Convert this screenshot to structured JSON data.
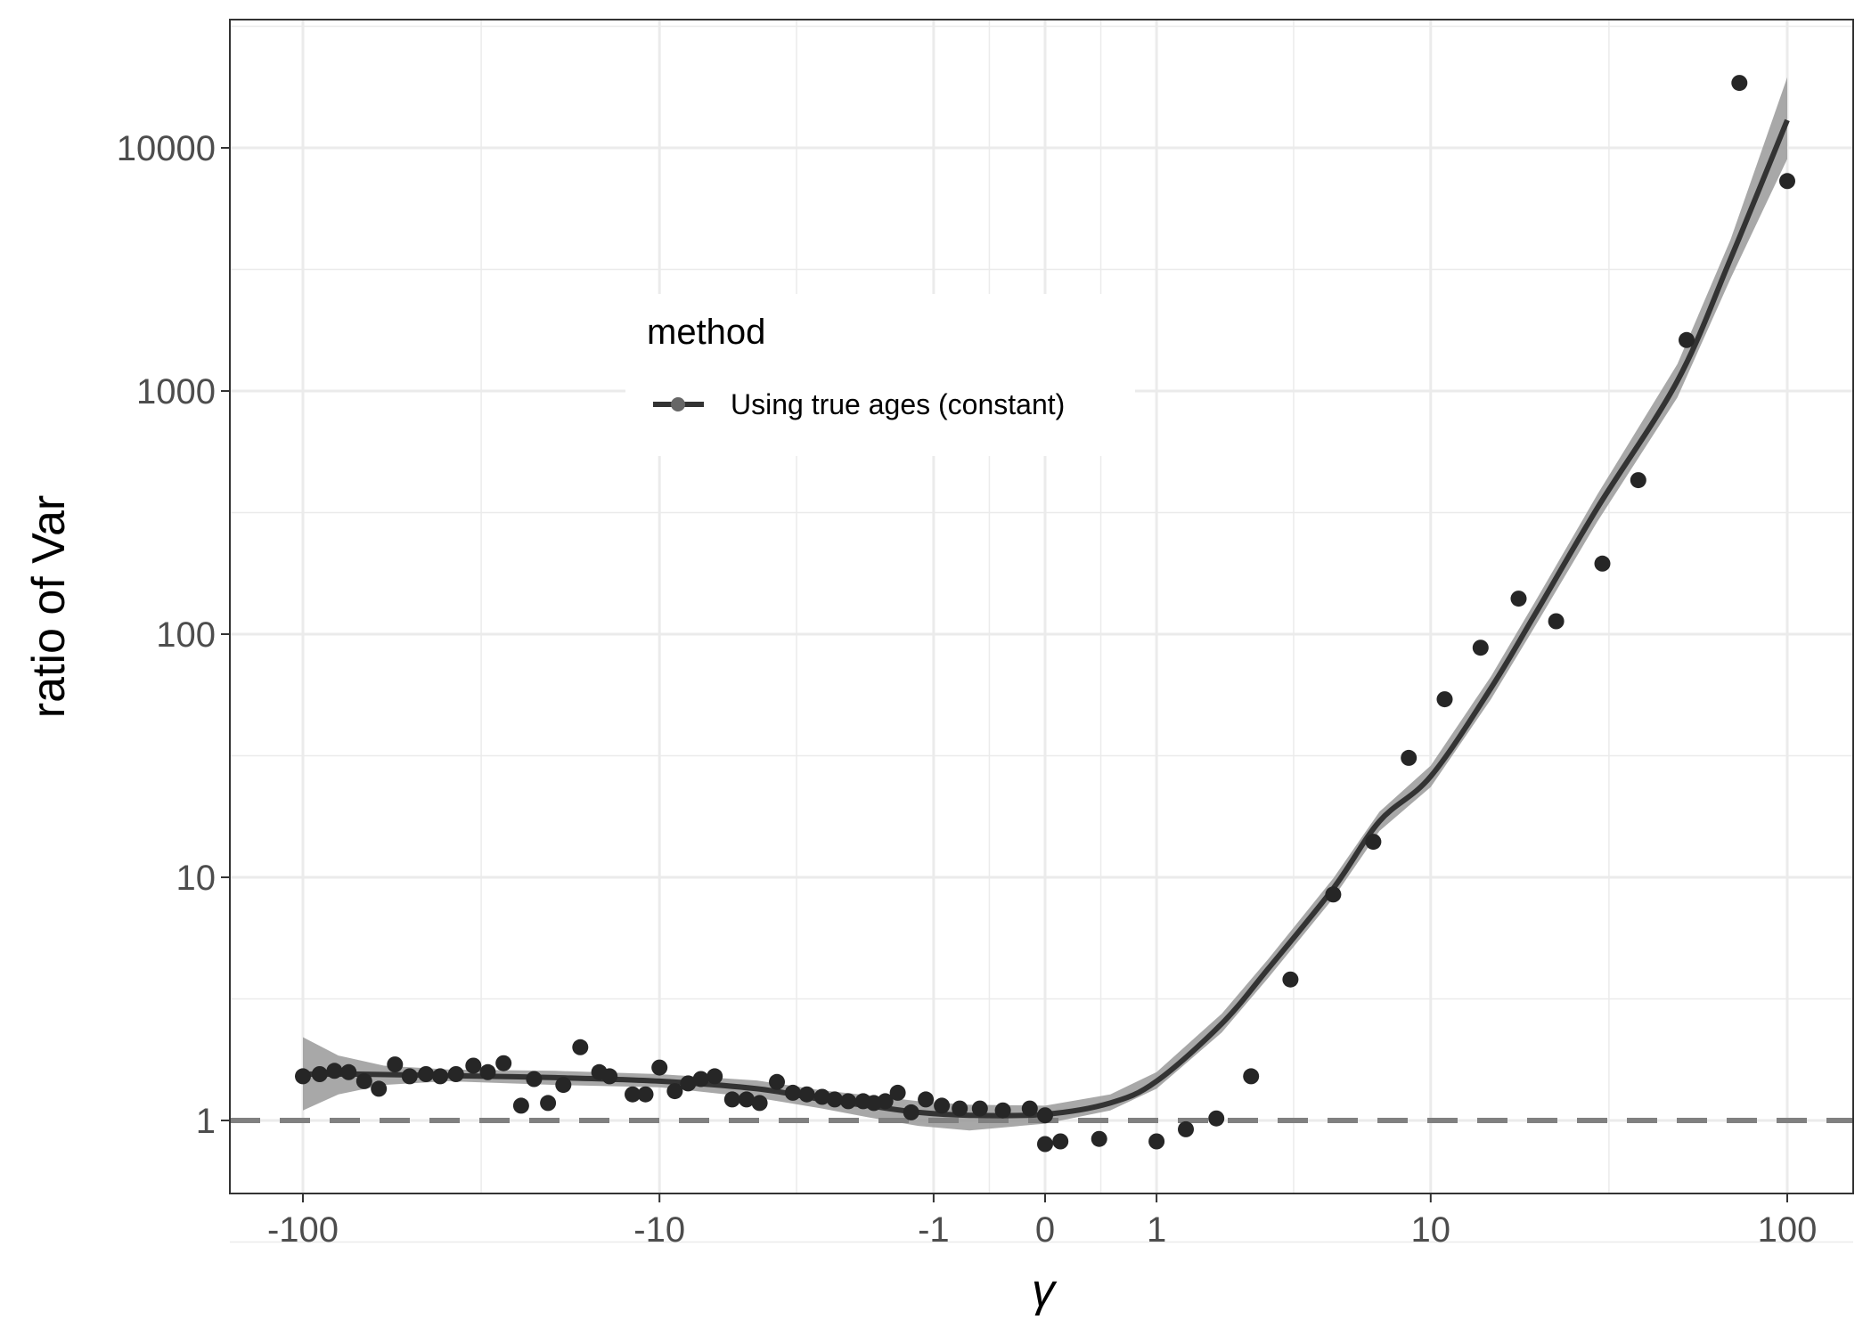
{
  "chart_data": {
    "type": "scatter",
    "xlabel": "γ",
    "ylabel": "ratio of Var",
    "x_scale": "pseudo-log (signed)",
    "y_scale": "log10",
    "xlim": [
      -100,
      100
    ],
    "ylim": [
      0.5,
      30000
    ],
    "x_ticks": [
      -100,
      -10,
      -1,
      0,
      1,
      10,
      100
    ],
    "x_tick_labels": [
      "-100",
      "-10",
      "-1",
      "0",
      "1",
      "10",
      "100"
    ],
    "y_ticks": [
      1,
      10,
      100,
      1000,
      10000
    ],
    "y_tick_labels": [
      "1",
      "10",
      "100",
      "1000",
      "10000"
    ],
    "grid": true,
    "reference_line": {
      "y": 1,
      "style": "dashed"
    },
    "legend": {
      "title": "method",
      "position": "top-center (inside)",
      "entries": [
        "Using true ages (constant)"
      ]
    },
    "colors": {
      "points": "#262626",
      "smooth_line": "#333333",
      "confidence_band": "#999999",
      "reference_line": "#808080",
      "grid": "#ebebeb"
    },
    "series": [
      {
        "name": "Using true ages (constant)",
        "points": [
          [
            -100,
            1.52
          ],
          [
            -90,
            1.55
          ],
          [
            -82,
            1.6
          ],
          [
            -75,
            1.58
          ],
          [
            -68,
            1.45
          ],
          [
            -62,
            1.35
          ],
          [
            -56,
            1.7
          ],
          [
            -51,
            1.52
          ],
          [
            -46,
            1.55
          ],
          [
            -42,
            1.52
          ],
          [
            -38,
            1.55
          ],
          [
            -34,
            1.68
          ],
          [
            -31,
            1.58
          ],
          [
            -28,
            1.72
          ],
          [
            -25,
            1.15
          ],
          [
            -23,
            1.48
          ],
          [
            -21,
            1.18
          ],
          [
            -19,
            1.4
          ],
          [
            -17,
            2.0
          ],
          [
            -15,
            1.58
          ],
          [
            -14,
            1.52
          ],
          [
            -12,
            1.28
          ],
          [
            -11,
            1.28
          ],
          [
            -10,
            1.65
          ],
          [
            -9,
            1.32
          ],
          [
            -8.2,
            1.42
          ],
          [
            -7.5,
            1.48
          ],
          [
            -6.8,
            1.52
          ],
          [
            -6.0,
            1.22
          ],
          [
            -5.4,
            1.22
          ],
          [
            -4.9,
            1.18
          ],
          [
            -4.3,
            1.44
          ],
          [
            -3.8,
            1.3
          ],
          [
            -3.4,
            1.28
          ],
          [
            -3.0,
            1.25
          ],
          [
            -2.7,
            1.22
          ],
          [
            -2.4,
            1.2
          ],
          [
            -2.1,
            1.2
          ],
          [
            -1.9,
            1.18
          ],
          [
            -1.7,
            1.2
          ],
          [
            -1.5,
            1.3
          ],
          [
            -1.3,
            1.08
          ],
          [
            -1.1,
            1.22
          ],
          [
            -0.9,
            1.15
          ],
          [
            -0.7,
            1.12
          ],
          [
            -0.5,
            1.12
          ],
          [
            -0.3,
            1.1
          ],
          [
            -0.1,
            1.12
          ],
          [
            0.0,
            1.05
          ],
          [
            0.0,
            0.8
          ],
          [
            0.1,
            0.82
          ],
          [
            0.4,
            0.84
          ],
          [
            1.0,
            0.82
          ],
          [
            1.4,
            0.92
          ],
          [
            1.9,
            1.02
          ],
          [
            2.6,
            1.52
          ],
          [
            3.6,
            3.8
          ],
          [
            5.0,
            8.5
          ],
          [
            6.7,
            14.0
          ],
          [
            8.6,
            31.0
          ],
          [
            11,
            54
          ],
          [
            14,
            88
          ],
          [
            18,
            140
          ],
          [
            23,
            113
          ],
          [
            31,
            195
          ],
          [
            39,
            430
          ],
          [
            53,
            1620
          ],
          [
            74,
            18500
          ],
          [
            100,
            7300
          ]
        ],
        "smooth": [
          [
            -100,
            1.55
          ],
          [
            -70,
            1.55
          ],
          [
            -40,
            1.53
          ],
          [
            -20,
            1.5
          ],
          [
            -10,
            1.45
          ],
          [
            -5,
            1.35
          ],
          [
            -3,
            1.22
          ],
          [
            -2,
            1.15
          ],
          [
            -1.2,
            1.08
          ],
          [
            -0.6,
            1.05
          ],
          [
            0,
            1.06
          ],
          [
            0.5,
            1.18
          ],
          [
            1,
            1.45
          ],
          [
            2,
            2.5
          ],
          [
            3,
            4.2
          ],
          [
            5,
            9
          ],
          [
            7,
            17
          ],
          [
            10,
            26
          ],
          [
            15,
            60
          ],
          [
            20,
            120
          ],
          [
            30,
            330
          ],
          [
            50,
            1100
          ],
          [
            70,
            3500
          ],
          [
            100,
            13000
          ]
        ],
        "band": [
          [
            -100,
            1.1,
            2.2
          ],
          [
            -80,
            1.28,
            1.85
          ],
          [
            -60,
            1.4,
            1.68
          ],
          [
            -40,
            1.45,
            1.62
          ],
          [
            -20,
            1.4,
            1.6
          ],
          [
            -10,
            1.37,
            1.55
          ],
          [
            -5,
            1.24,
            1.46
          ],
          [
            -3,
            1.12,
            1.33
          ],
          [
            -2,
            1.03,
            1.27
          ],
          [
            -1.2,
            0.95,
            1.2
          ],
          [
            -0.6,
            0.91,
            1.16
          ],
          [
            0,
            0.97,
            1.15
          ],
          [
            0.5,
            1.1,
            1.28
          ],
          [
            1,
            1.35,
            1.58
          ],
          [
            2,
            2.3,
            2.75
          ],
          [
            3,
            3.85,
            4.6
          ],
          [
            5,
            8.2,
            9.9
          ],
          [
            7,
            15.5,
            18.6
          ],
          [
            10,
            23.5,
            28.8
          ],
          [
            15,
            54,
            67
          ],
          [
            20,
            107,
            135
          ],
          [
            30,
            290,
            375
          ],
          [
            50,
            940,
            1290
          ],
          [
            70,
            2900,
            4200
          ],
          [
            100,
            9000,
            19500
          ]
        ]
      }
    ]
  }
}
